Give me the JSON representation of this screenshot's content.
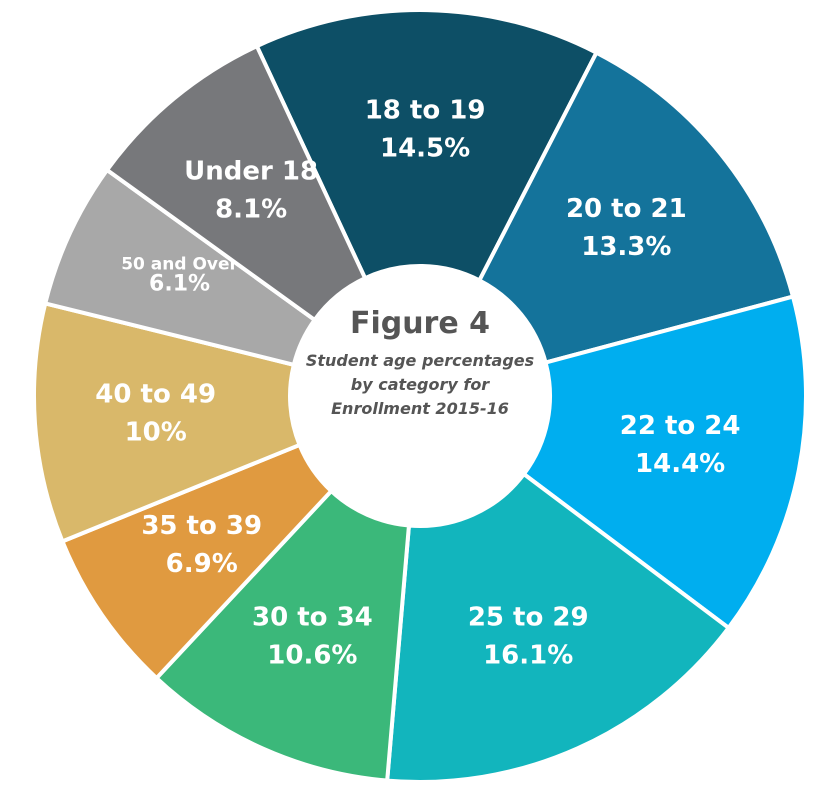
{
  "chart_data": {
    "type": "donut",
    "title": "Figure 4",
    "subtitle": "Student age percentages by category for Enrollment 2015-16",
    "categories": [
      "18 to 19",
      "20 to 21",
      "22 to 24",
      "25 to 29",
      "30 to 34",
      "35 to 39",
      "40 to 49",
      "50 and Over",
      "Under 18"
    ],
    "values": [
      14.5,
      13.3,
      14.4,
      16.1,
      10.6,
      6.9,
      10,
      6.1,
      8.1
    ],
    "value_labels": [
      "14.5%",
      "13.3%",
      "14.4%",
      "16.1%",
      "10.6%",
      "6.9%",
      "10%",
      "6.1%",
      "8.1%"
    ],
    "colors": [
      "#0d4f66",
      "#14739b",
      "#00aeef",
      "#12b5bd",
      "#3bb87a",
      "#e09a40",
      "#d9b86a",
      "#a8a8a8",
      "#77787b"
    ]
  }
}
